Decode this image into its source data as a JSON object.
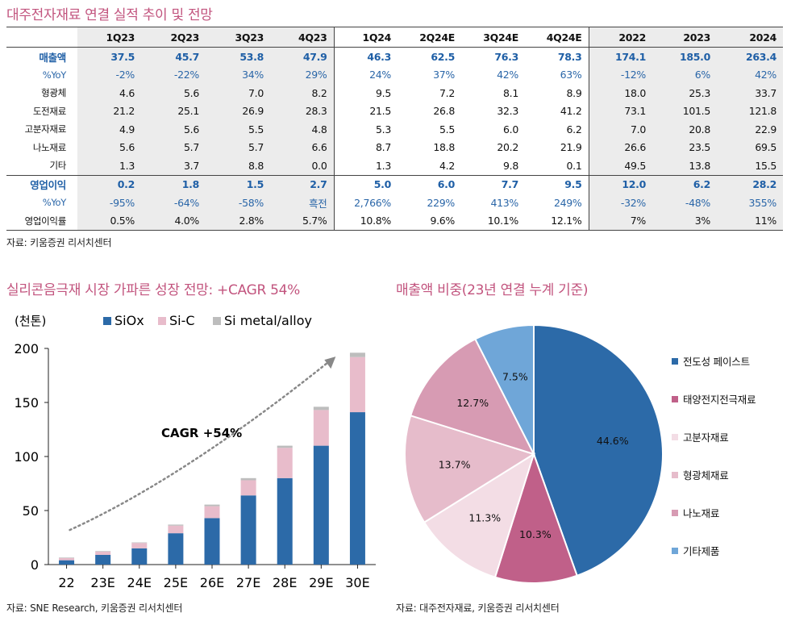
{
  "table": {
    "title": "대주전자재료 연결 실적 추이 및 전망",
    "columns": [
      "1Q23",
      "2Q23",
      "3Q23",
      "4Q23",
      "1Q24",
      "2Q24E",
      "3Q24E",
      "4Q24E",
      "2022",
      "2023",
      "2024"
    ],
    "rows": [
      {
        "label": "매출액",
        "kind": "main",
        "values": [
          "37.5",
          "45.7",
          "53.8",
          "47.9",
          "46.3",
          "62.5",
          "76.3",
          "78.3",
          "174.1",
          "185.0",
          "263.4"
        ]
      },
      {
        "label": "%YoY",
        "kind": "yoy",
        "values": [
          "-2%",
          "-22%",
          "34%",
          "29%",
          "24%",
          "37%",
          "42%",
          "63%",
          "-12%",
          "6%",
          "42%"
        ]
      },
      {
        "label": "형광체",
        "kind": "sub",
        "values": [
          "4.6",
          "5.6",
          "7.0",
          "8.2",
          "9.5",
          "7.2",
          "8.1",
          "8.9",
          "18.0",
          "25.3",
          "33.7"
        ]
      },
      {
        "label": "도전재료",
        "kind": "sub",
        "values": [
          "21.2",
          "25.1",
          "26.9",
          "28.3",
          "21.5",
          "26.8",
          "32.3",
          "41.2",
          "73.1",
          "101.5",
          "121.8"
        ]
      },
      {
        "label": "고분자재료",
        "kind": "sub",
        "values": [
          "4.9",
          "5.6",
          "5.5",
          "4.8",
          "5.3",
          "5.5",
          "6.0",
          "6.2",
          "7.0",
          "20.8",
          "22.9"
        ]
      },
      {
        "label": "나노재료",
        "kind": "sub",
        "values": [
          "5.6",
          "5.7",
          "5.7",
          "6.6",
          "8.7",
          "18.8",
          "20.2",
          "21.9",
          "26.6",
          "23.5",
          "69.5"
        ]
      },
      {
        "label": "기타",
        "kind": "sub",
        "values": [
          "1.3",
          "3.7",
          "8.8",
          "0.0",
          "1.3",
          "4.2",
          "9.8",
          "0.1",
          "49.5",
          "13.8",
          "15.5"
        ]
      },
      {
        "label": "영업이익",
        "kind": "main",
        "values": [
          "0.2",
          "1.8",
          "1.5",
          "2.7",
          "5.0",
          "6.0",
          "7.7",
          "9.5",
          "12.0",
          "6.2",
          "28.2"
        ]
      },
      {
        "label": "%YoY",
        "kind": "yoy",
        "values": [
          "-95%",
          "-64%",
          "-58%",
          "흑전",
          "2,766%",
          "229%",
          "413%",
          "249%",
          "-32%",
          "-48%",
          "355%"
        ]
      },
      {
        "label": "영업이익률",
        "kind": "sub",
        "values": [
          "0.5%",
          "4.0%",
          "2.8%",
          "5.7%",
          "10.8%",
          "9.6%",
          "10.1%",
          "12.1%",
          "7%",
          "3%",
          "11%"
        ]
      }
    ],
    "source": "자료: 키움증권 리서치센터"
  },
  "bar_chart": {
    "title": "실리콘음극재 시장 가파른 성장 전망: +CAGR 54%",
    "unit_label": "(천톤)",
    "annotation": "CAGR +54%",
    "source": "자료: SNE Research, 키움증권 리서치센터"
  },
  "pie_chart": {
    "title": "매출액 비중(23년 연결 누계 기준)",
    "source": "자료: 대주전자재료, 키움증권 리서치센터"
  },
  "colors": {
    "title": "#c2547e",
    "siox": "#2c6aa8",
    "sic": "#e8bccb",
    "metal": "#bdbdbd",
    "pie": [
      "#2c6aa8",
      "#c06089",
      "#f3dde5",
      "#e6bccb",
      "#d79bb3",
      "#6fa6d8"
    ]
  },
  "chart_data": [
    {
      "type": "bar",
      "stacked": true,
      "title": "실리콘음극재 시장 가파른 성장 전망: +CAGR 54%",
      "categories": [
        "22",
        "23E",
        "24E",
        "25E",
        "26E",
        "27E",
        "28E",
        "29E",
        "30E"
      ],
      "series": [
        {
          "name": "SiOx",
          "values": [
            4,
            9,
            15,
            29,
            43,
            64,
            80,
            110,
            141
          ]
        },
        {
          "name": "Si-C",
          "values": [
            2,
            3,
            5,
            7,
            11,
            14,
            28,
            33,
            51
          ]
        },
        {
          "name": "Si metal/alloy",
          "values": [
            0.5,
            0.5,
            0.5,
            1,
            1.5,
            2,
            2,
            3,
            4
          ]
        }
      ],
      "ylabel": "(천톤)",
      "ylim": [
        0,
        200
      ],
      "yticks": [
        0,
        50,
        100,
        150,
        200
      ],
      "legend": "top",
      "annotation": "CAGR +54%"
    },
    {
      "type": "pie",
      "title": "매출액 비중(23년 연결 누계 기준)",
      "labels": [
        "전도성 페이스트",
        "태양전지전극재료",
        "고분자재료",
        "형광체재료",
        "나노재료",
        "기타제품"
      ],
      "values": [
        44.6,
        10.3,
        11.3,
        13.7,
        12.7,
        7.5
      ],
      "value_labels": [
        "44.6%",
        "10.3%",
        "11.3%",
        "13.7%",
        "12.7%",
        "7.5%"
      ],
      "legend": "right"
    }
  ]
}
